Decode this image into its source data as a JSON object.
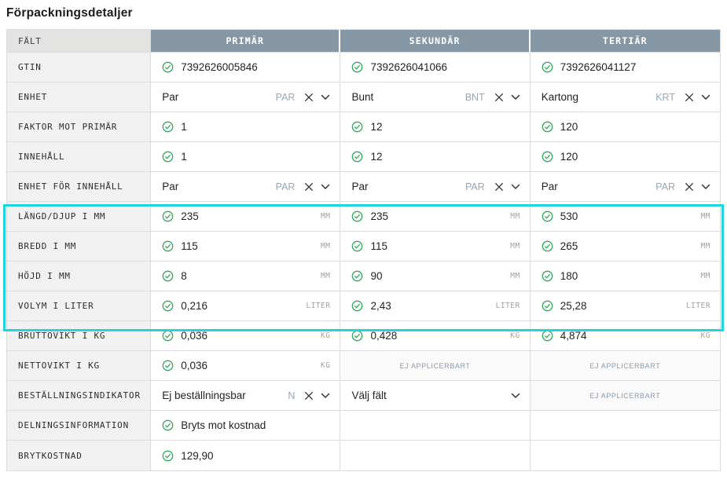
{
  "title": "Förpackningsdetaljer",
  "na_label": "EJ APPLICERBART",
  "colors": {
    "header_bg": "#8697a6",
    "field_header_bg": "#e3e3e1",
    "label_bg": "#f1f1f1",
    "highlight": "#1fd6e0",
    "check_green": "#31a85b",
    "code_text": "#94a8b8",
    "unit_text": "#a2a2a2"
  },
  "table": {
    "headers": [
      "FÄLT",
      "PRIMÄR",
      "SEKUNDÄR",
      "TERTIÄR"
    ],
    "rows": [
      {
        "label": "GTIN",
        "cells": [
          {
            "type": "value",
            "text": "7392626005846"
          },
          {
            "type": "value",
            "text": "7392626041066"
          },
          {
            "type": "value",
            "text": "7392626041127"
          }
        ]
      },
      {
        "label": "ENHET",
        "cells": [
          {
            "type": "dropdown",
            "text": "Par",
            "code": "PAR"
          },
          {
            "type": "dropdown",
            "text": "Bunt",
            "code": "BNT"
          },
          {
            "type": "dropdown",
            "text": "Kartong",
            "code": "KRT"
          }
        ]
      },
      {
        "label": "FAKTOR MOT PRIMÄR",
        "cells": [
          {
            "type": "value",
            "text": "1"
          },
          {
            "type": "value",
            "text": "12"
          },
          {
            "type": "value",
            "text": "120"
          }
        ]
      },
      {
        "label": "INNEHÅLL",
        "cells": [
          {
            "type": "value",
            "text": "1"
          },
          {
            "type": "value",
            "text": "12"
          },
          {
            "type": "value",
            "text": "120"
          }
        ]
      },
      {
        "label": "ENHET FÖR INNEHÅLL",
        "cells": [
          {
            "type": "dropdown",
            "text": "Par",
            "code": "PAR"
          },
          {
            "type": "dropdown",
            "text": "Par",
            "code": "PAR"
          },
          {
            "type": "dropdown",
            "text": "Par",
            "code": "PAR"
          }
        ]
      },
      {
        "label": "LÄNGD/DJUP I MM",
        "highlighted": true,
        "cells": [
          {
            "type": "value",
            "text": "235",
            "unit": "MM"
          },
          {
            "type": "value",
            "text": "235",
            "unit": "MM"
          },
          {
            "type": "value",
            "text": "530",
            "unit": "MM"
          }
        ]
      },
      {
        "label": "BREDD I MM",
        "highlighted": true,
        "cells": [
          {
            "type": "value",
            "text": "115",
            "unit": "MM"
          },
          {
            "type": "value",
            "text": "115",
            "unit": "MM"
          },
          {
            "type": "value",
            "text": "265",
            "unit": "MM"
          }
        ]
      },
      {
        "label": "HÖJD I MM",
        "highlighted": true,
        "cells": [
          {
            "type": "value",
            "text": "8",
            "unit": "MM"
          },
          {
            "type": "value",
            "text": "90",
            "unit": "MM"
          },
          {
            "type": "value",
            "text": "180",
            "unit": "MM"
          }
        ]
      },
      {
        "label": "VOLYM I LITER",
        "highlighted": true,
        "cells": [
          {
            "type": "value",
            "text": "0,216",
            "unit": "LITER"
          },
          {
            "type": "value",
            "text": "2,43",
            "unit": "LITER"
          },
          {
            "type": "value",
            "text": "25,28",
            "unit": "LITER"
          }
        ]
      },
      {
        "label": "BRUTTOVIKT I KG",
        "cells": [
          {
            "type": "value",
            "text": "0,036",
            "unit": "KG"
          },
          {
            "type": "value",
            "text": "0,428",
            "unit": "KG"
          },
          {
            "type": "value",
            "text": "4,874",
            "unit": "KG"
          }
        ]
      },
      {
        "label": "NETTOVIKT I KG",
        "cells": [
          {
            "type": "value",
            "text": "0,036",
            "unit": "KG"
          },
          {
            "type": "na"
          },
          {
            "type": "na"
          }
        ]
      },
      {
        "label": "BESTÄLLNINGSINDIKATOR",
        "cells": [
          {
            "type": "dropdown",
            "text": "Ej beställningsbar",
            "code": "N"
          },
          {
            "type": "select",
            "text": "Välj fält"
          },
          {
            "type": "na"
          }
        ]
      },
      {
        "label": "DELNINGSINFORMATION",
        "cells": [
          {
            "type": "value",
            "text": "Bryts mot kostnad"
          },
          {
            "type": "empty"
          },
          {
            "type": "empty"
          }
        ]
      },
      {
        "label": "BRYTKOSTNAD",
        "cells": [
          {
            "type": "value",
            "text": "129,90"
          },
          {
            "type": "empty"
          },
          {
            "type": "empty"
          }
        ]
      }
    ]
  }
}
